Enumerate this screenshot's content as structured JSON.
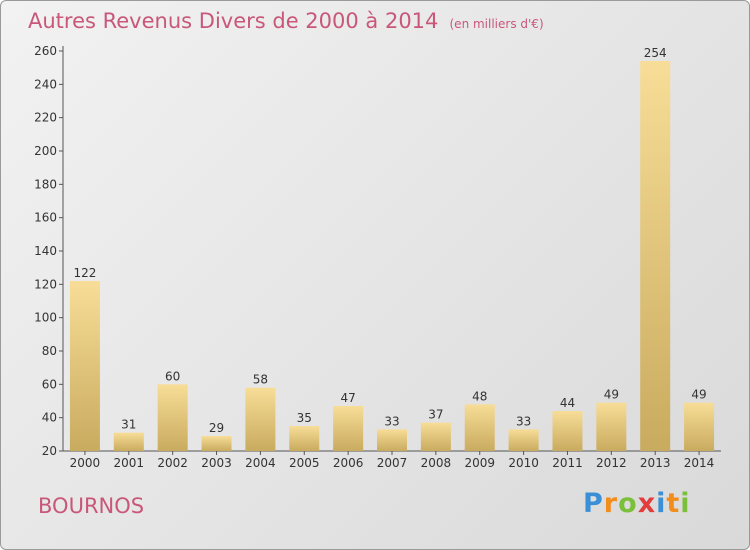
{
  "chart_data": {
    "type": "bar",
    "title": "Autres Revenus Divers de 2000 à 2014",
    "subtitle": "(en milliers d'€)",
    "categories": [
      "2000",
      "2001",
      "2002",
      "2003",
      "2004",
      "2005",
      "2006",
      "2007",
      "2008",
      "2009",
      "2010",
      "2011",
      "2012",
      "2013",
      "2014"
    ],
    "values": [
      122,
      31,
      60,
      29,
      58,
      35,
      47,
      33,
      37,
      48,
      33,
      44,
      49,
      254,
      49
    ],
    "ylim": [
      20,
      260
    ],
    "yticks": [
      20,
      40,
      60,
      80,
      100,
      120,
      140,
      160,
      180,
      200,
      220,
      240,
      260
    ],
    "grid": false,
    "colors": {
      "bar_light": "#f7dd97",
      "bar_dark": "#c9ab5f",
      "text": "#333333",
      "title": "#c8577a"
    }
  },
  "place_name": "BOURNOS",
  "logo": {
    "letters": [
      "P",
      "r",
      "o",
      "x",
      "i",
      "t",
      "i"
    ],
    "colors": [
      "#3a8fd6",
      "#f28c1a",
      "#7cbf3a",
      "#e23c3c",
      "#3a8fd6",
      "#f28c1a",
      "#7cbf3a"
    ]
  }
}
